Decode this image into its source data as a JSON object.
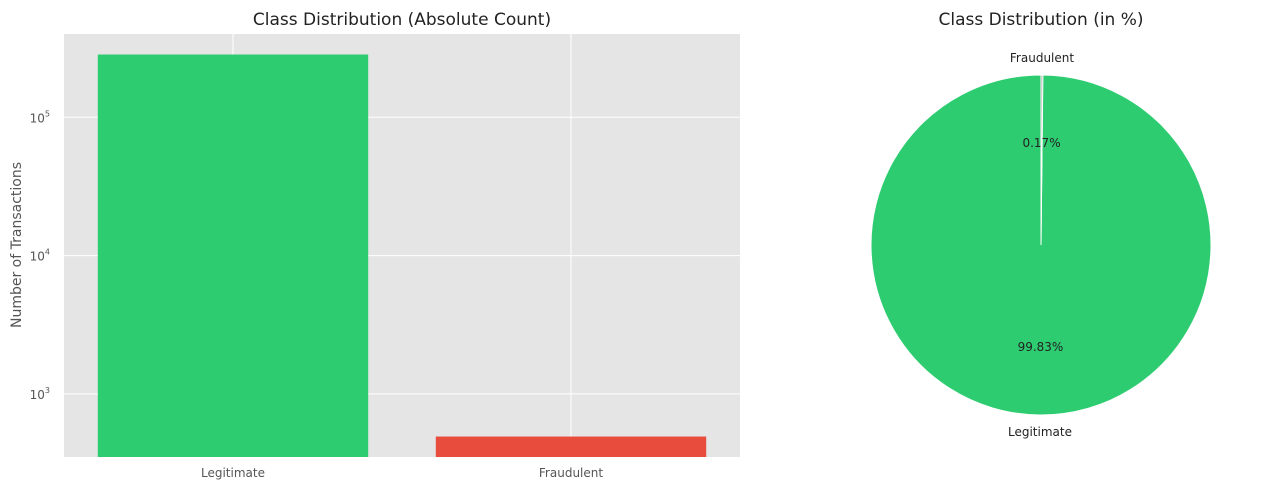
{
  "chart_data": [
    {
      "type": "bar",
      "title": "Class Distribution (Absolute Count)",
      "xlabel": "",
      "ylabel": "Number of Transactions",
      "yscale": "log",
      "ylim": [
        350,
        400000
      ],
      "yticks": [
        {
          "value": 1000,
          "base": "10",
          "exp": "3"
        },
        {
          "value": 10000,
          "base": "10",
          "exp": "4"
        },
        {
          "value": 100000,
          "base": "10",
          "exp": "5"
        }
      ],
      "categories": [
        "Legitimate",
        "Fraudulent"
      ],
      "values": [
        284315,
        492
      ],
      "colors": [
        "#2ecc71",
        "#e74c3c"
      ],
      "grid": true
    },
    {
      "type": "pie",
      "title": "Class Distribution (in %)",
      "labels": [
        "Legitimate",
        "Fraudulent"
      ],
      "values": [
        99.83,
        0.17
      ],
      "pct_labels": [
        "99.83%",
        "0.17%"
      ],
      "colors": [
        "#2ecc71",
        "#a6a6a6"
      ],
      "start_angle": 90
    }
  ]
}
